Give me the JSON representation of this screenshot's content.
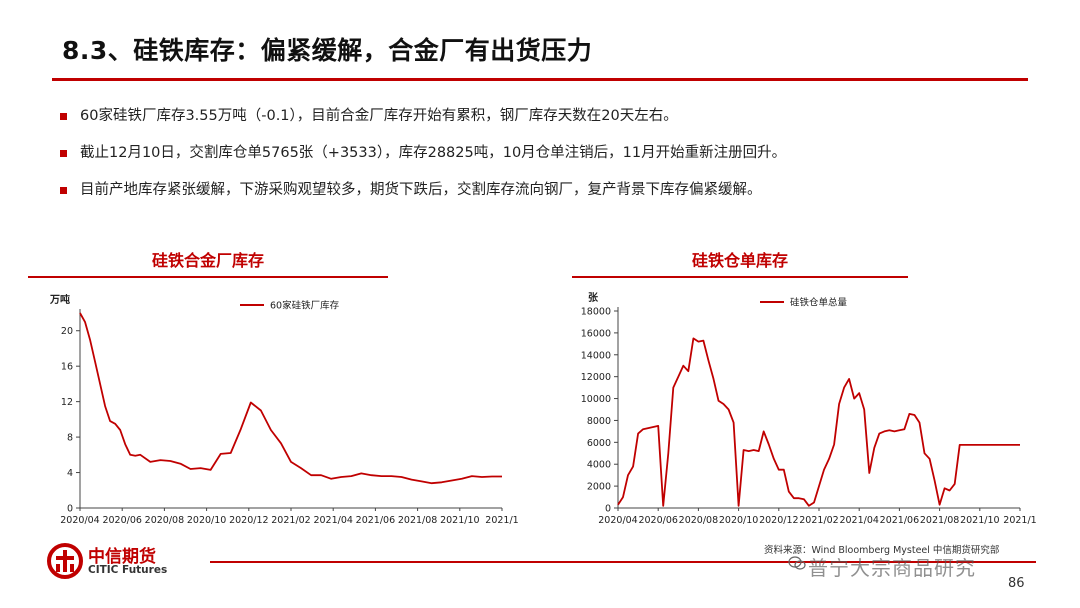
{
  "slide": {
    "title": "8.3、硅铁库存：偏紧缓解，合金厂有出货压力",
    "bullets": [
      "60家硅铁厂库存3.55万吨（-0.1），目前合金厂库存开始有累积，钢厂库存天数在20天左右。",
      "截止12月10日，交割库仓单5765张（+3533），库存28825吨，10月仓单注销后，11月开始重新注册回升。",
      "目前产地库存紧张缓解，下游采购观望较多，期货下跌后，交割库存流向钢厂，复产背景下库存偏紧缓解。"
    ],
    "accent": "#c00000",
    "page_number": "86",
    "source_text": "资料来源：Wind Bloomberg Mysteel 中信期货研究部",
    "watermark": "普宁大宗商品研究"
  },
  "logo": {
    "cn": "中信期货",
    "en": "CITIC Futures"
  },
  "chart_data": [
    {
      "type": "line",
      "panel_title": "硅铁合金厂库存",
      "ylabel": "万吨",
      "ylim": [
        0,
        22
      ],
      "yticks": [
        "0",
        "4",
        "8",
        "12",
        "16",
        "20"
      ],
      "xticks": [
        "2020/04",
        "2020/06",
        "2020/08",
        "2020/10",
        "2020/12",
        "2021/02",
        "2021/04",
        "2021/06",
        "2021/08",
        "2021/10",
        "2021/1"
      ],
      "series": [
        {
          "name": "60家硅铁厂库存",
          "color": "#c00000",
          "x": [
            0,
            0.25,
            0.5,
            0.75,
            1.0,
            1.25,
            1.5,
            1.75,
            2.0,
            2.25,
            2.5,
            2.75,
            3.0,
            3.5,
            4.0,
            4.5,
            5.0,
            5.5,
            6.0,
            6.5,
            7.0,
            7.5,
            8.0,
            8.5,
            9.0,
            9.5,
            10.0,
            10.5,
            11.0,
            11.5,
            12.0,
            12.5,
            13.0,
            13.5,
            14.0,
            14.5,
            15.0,
            15.5,
            16.0,
            16.5,
            17.0,
            17.5,
            18.0,
            18.5,
            19.0,
            19.5,
            20.0,
            20.5,
            21.0
          ],
          "values": [
            22.0,
            21.0,
            19.0,
            16.5,
            14.0,
            11.5,
            9.8,
            9.5,
            8.8,
            7.2,
            6.0,
            5.9,
            6.0,
            5.2,
            5.4,
            5.3,
            5.0,
            4.4,
            4.5,
            4.3,
            6.1,
            6.2,
            8.9,
            11.9,
            11.0,
            8.8,
            7.3,
            5.2,
            4.5,
            3.7,
            3.7,
            3.3,
            3.5,
            3.6,
            3.9,
            3.7,
            3.6,
            3.6,
            3.5,
            3.2,
            3.0,
            2.8,
            2.9,
            3.1,
            3.3,
            3.6,
            3.5,
            3.55,
            3.55
          ]
        }
      ]
    },
    {
      "type": "line",
      "panel_title": "硅铁仓单库存",
      "ylabel": "张",
      "ylim": [
        0,
        18000
      ],
      "yticks": [
        "0",
        "2000",
        "4000",
        "6000",
        "8000",
        "10000",
        "12000",
        "14000",
        "16000",
        "18000"
      ],
      "xticks": [
        "2020/04",
        "2020/06",
        "2020/08",
        "2020/10",
        "2020/12",
        "2021/02",
        "2021/04",
        "2021/06",
        "2021/08",
        "2021/10",
        "2021/1"
      ],
      "series": [
        {
          "name": "硅铁仓单总量",
          "color": "#c00000",
          "x": [
            0,
            0.25,
            0.5,
            0.75,
            1.0,
            1.25,
            1.5,
            1.75,
            2.0,
            2.25,
            2.5,
            2.75,
            3.0,
            3.25,
            3.5,
            3.75,
            4.0,
            4.25,
            4.5,
            4.75,
            5.0,
            5.25,
            5.5,
            5.75,
            6.0,
            6.25,
            6.5,
            6.75,
            7.0,
            7.25,
            7.5,
            7.75,
            8.0,
            8.25,
            8.5,
            8.75,
            9.0,
            9.25,
            9.5,
            9.75,
            10.0,
            10.25,
            10.5,
            10.75,
            11.0,
            11.25,
            11.5,
            11.75,
            12.0,
            12.25,
            12.5,
            12.75,
            13.0,
            13.25,
            13.5,
            13.75,
            14.0,
            14.25,
            14.5,
            14.75,
            15.0,
            15.25,
            15.5,
            15.75,
            16.0,
            16.25,
            16.5,
            16.75,
            17.0,
            17.25,
            17.5,
            17.75,
            18.0,
            18.25,
            18.5,
            18.75,
            19.0,
            19.25,
            19.5,
            19.75,
            20.0
          ],
          "values": [
            300,
            1000,
            3000,
            3800,
            6800,
            7200,
            7300,
            7400,
            7500,
            200,
            5000,
            11000,
            12000,
            13000,
            12500,
            15500,
            15200,
            15300,
            13500,
            11800,
            9800,
            9500,
            9000,
            7800,
            200,
            5300,
            5200,
            5300,
            5200,
            7000,
            5800,
            4500,
            3500,
            3500,
            1500,
            900,
            900,
            800,
            200,
            500,
            2000,
            3500,
            4500,
            5800,
            9500,
            11000,
            11800,
            10000,
            10500,
            9000,
            3200,
            5500,
            6800,
            7000,
            7100,
            7000,
            7100,
            7200,
            8600,
            8500,
            7800,
            5000,
            4500,
            2500,
            300,
            1800,
            1600,
            2200,
            5765,
            5765,
            5765,
            5765,
            5765,
            5765,
            5765,
            5765,
            5765,
            5765,
            5765,
            5765,
            5765
          ]
        }
      ]
    }
  ]
}
